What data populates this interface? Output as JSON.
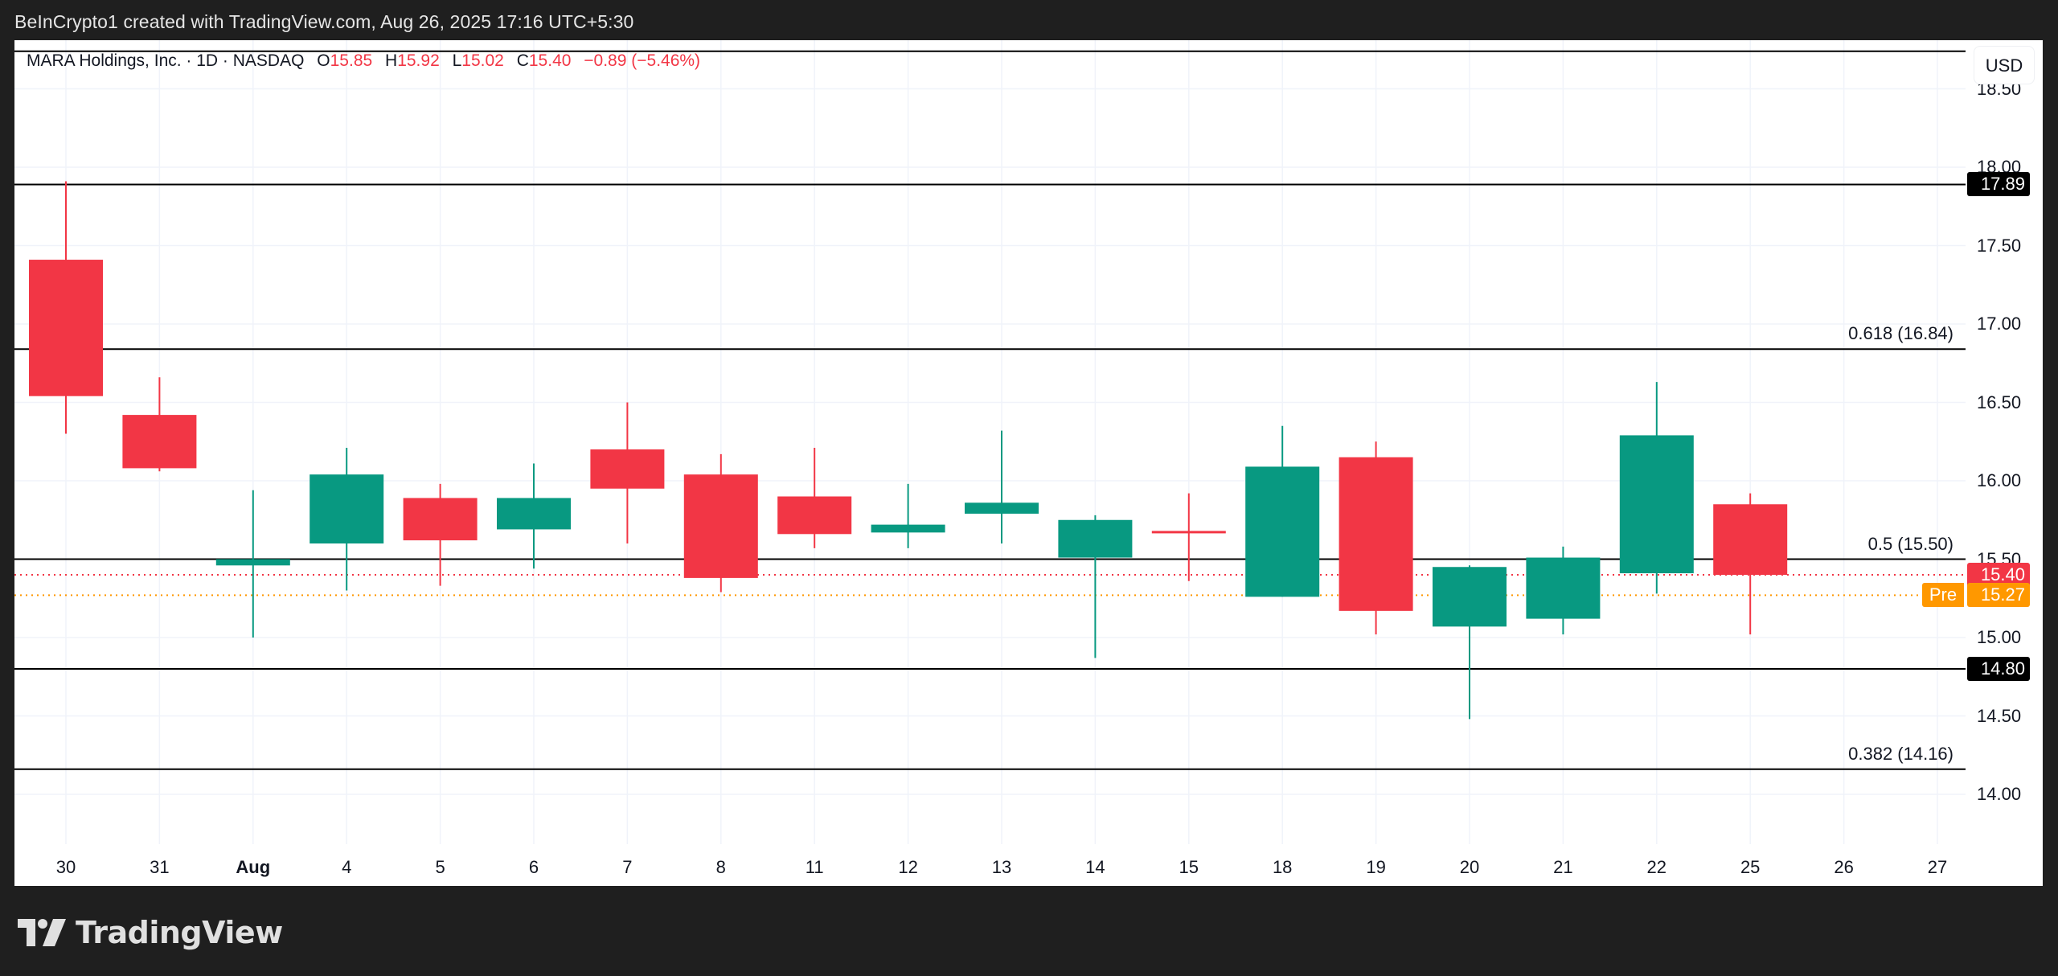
{
  "caption": "BeInCrypto1 created with TradingView.com, Aug 26, 2025 17:16 UTC+5:30",
  "legend": {
    "symbol": "MARA Holdings, Inc. · 1D · NASDAQ",
    "o_label": "O",
    "o": "15.85",
    "h_label": "H",
    "h": "15.92",
    "l_label": "L",
    "l": "15.02",
    "c_label": "C",
    "c": "15.40",
    "change": "−0.89 (−5.46%)"
  },
  "price_scale": {
    "currency_button": "USD",
    "last_price": "15.40",
    "premarket_label": "Pre",
    "premarket_price": "15.27"
  },
  "logo": {
    "text": "TradingView"
  },
  "colors": {
    "up": "#089981",
    "down": "#F23645",
    "premarket": "#FF9800",
    "level_line": "#000000",
    "grid": "#f0f3fa",
    "background": "#ffffff",
    "frame": "#1f1f1f"
  },
  "chart_data": {
    "type": "candlestick",
    "title": "MARA Holdings, Inc. · 1D · NASDAQ",
    "xlabel": "",
    "ylabel": "USD",
    "ylim": [
      13.7,
      18.74
    ],
    "grid": true,
    "x_ticks": [
      "30",
      "31",
      "Aug",
      "4",
      "5",
      "6",
      "7",
      "8",
      "11",
      "12",
      "13",
      "14",
      "15",
      "18",
      "19",
      "20",
      "21",
      "22",
      "25",
      "26",
      "27"
    ],
    "x_tick_bold": [
      "Aug"
    ],
    "y_ticks": [
      "18.50",
      "18.00",
      "17.50",
      "17.00",
      "16.50",
      "16.00",
      "15.50",
      "15.00",
      "14.50",
      "14.00"
    ],
    "candles": [
      {
        "date": "Jul 30",
        "open": 17.41,
        "high": 17.91,
        "low": 16.3,
        "close": 16.54
      },
      {
        "date": "Jul 31",
        "open": 16.42,
        "high": 16.66,
        "low": 16.06,
        "close": 16.08
      },
      {
        "date": "Aug 1",
        "open": 15.46,
        "high": 15.94,
        "low": 15.0,
        "close": 15.5
      },
      {
        "date": "Aug 4",
        "open": 15.6,
        "high": 16.21,
        "low": 15.3,
        "close": 16.04
      },
      {
        "date": "Aug 5",
        "open": 15.89,
        "high": 15.98,
        "low": 15.33,
        "close": 15.62
      },
      {
        "date": "Aug 6",
        "open": 15.69,
        "high": 16.11,
        "low": 15.44,
        "close": 15.89
      },
      {
        "date": "Aug 7",
        "open": 16.2,
        "high": 16.5,
        "low": 15.6,
        "close": 15.95
      },
      {
        "date": "Aug 8",
        "open": 16.04,
        "high": 16.17,
        "low": 15.29,
        "close": 15.38
      },
      {
        "date": "Aug 11",
        "open": 15.9,
        "high": 16.21,
        "low": 15.57,
        "close": 15.66
      },
      {
        "date": "Aug 12",
        "open": 15.67,
        "high": 15.98,
        "low": 15.57,
        "close": 15.72
      },
      {
        "date": "Aug 13",
        "open": 15.79,
        "high": 16.32,
        "low": 15.6,
        "close": 15.86
      },
      {
        "date": "Aug 14",
        "open": 15.51,
        "high": 15.78,
        "low": 14.87,
        "close": 15.75
      },
      {
        "date": "Aug 15",
        "open": 15.68,
        "high": 15.92,
        "low": 15.36,
        "close": 15.67
      },
      {
        "date": "Aug 18",
        "open": 15.26,
        "high": 16.35,
        "low": 15.26,
        "close": 16.09
      },
      {
        "date": "Aug 19",
        "open": 16.15,
        "high": 16.25,
        "low": 15.02,
        "close": 15.17
      },
      {
        "date": "Aug 20",
        "open": 15.07,
        "high": 15.46,
        "low": 14.48,
        "close": 15.45
      },
      {
        "date": "Aug 21",
        "open": 15.12,
        "high": 15.58,
        "low": 15.02,
        "close": 15.51
      },
      {
        "date": "Aug 22",
        "open": 15.41,
        "high": 16.63,
        "low": 15.28,
        "close": 16.29
      },
      {
        "date": "Aug 25",
        "open": 15.85,
        "high": 15.92,
        "low": 15.02,
        "close": 15.4
      }
    ],
    "horizontal_levels": [
      {
        "price": 18.74,
        "label": ""
      },
      {
        "price": 17.89,
        "label": "",
        "badge": "17.89"
      },
      {
        "price": 16.84,
        "label": "0.618 (16.84)"
      },
      {
        "price": 15.5,
        "label": "0.5 (15.50)"
      },
      {
        "price": 14.8,
        "label": "",
        "badge": "14.80"
      },
      {
        "price": 14.16,
        "label": "0.382 (14.16)"
      }
    ],
    "price_lines": [
      {
        "price": 15.4,
        "label": "15.40",
        "color": "#F23645",
        "style": "dotted"
      },
      {
        "price": 15.27,
        "label": "15.27",
        "prefix": "Pre",
        "color": "#FF9800",
        "style": "dotted"
      }
    ]
  }
}
